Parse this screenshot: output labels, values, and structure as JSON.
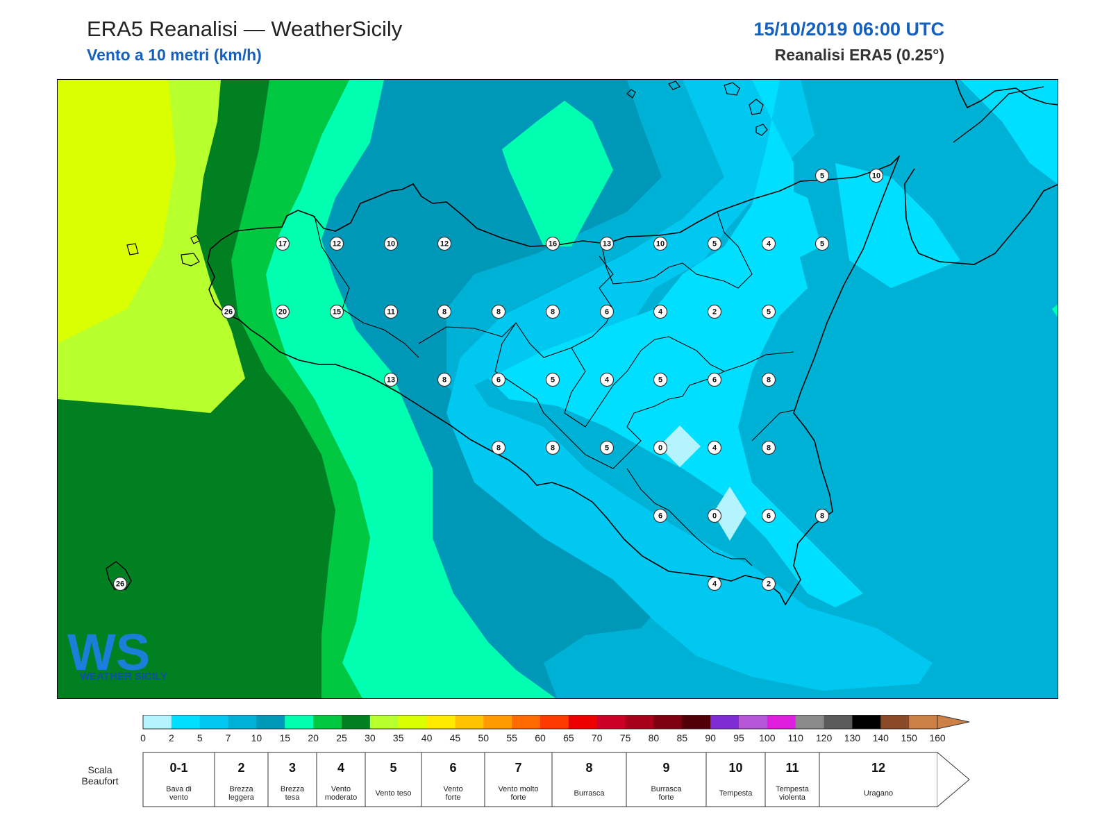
{
  "header": {
    "title": "ERA5 Reanalisi — WeatherSicily",
    "subtitle": "Vento a 10 metri (km/h)",
    "datetime": "15/10/2019 06:00 UTC",
    "source": "Reanalisi ERA5 (0.25°)"
  },
  "logo": {
    "letters": "WS",
    "text": "WEATHER SICILY"
  },
  "stations": [
    {
      "v": "17"
    },
    {
      "v": "12"
    },
    {
      "v": "10"
    },
    {
      "v": "12"
    },
    {
      "v": "16"
    },
    {
      "v": "13"
    },
    {
      "v": "10"
    },
    {
      "v": "5"
    },
    {
      "v": "4"
    },
    {
      "v": "5"
    },
    {
      "v": "5"
    },
    {
      "v": "10"
    },
    {
      "v": "26"
    },
    {
      "v": "20"
    },
    {
      "v": "15"
    },
    {
      "v": "11"
    },
    {
      "v": "8"
    },
    {
      "v": "8"
    },
    {
      "v": "8"
    },
    {
      "v": "6"
    },
    {
      "v": "4"
    },
    {
      "v": "2"
    },
    {
      "v": "5"
    },
    {
      "v": "13"
    },
    {
      "v": "8"
    },
    {
      "v": "6"
    },
    {
      "v": "5"
    },
    {
      "v": "4"
    },
    {
      "v": "5"
    },
    {
      "v": "6"
    },
    {
      "v": "8"
    },
    {
      "v": "8"
    },
    {
      "v": "8"
    },
    {
      "v": "5"
    },
    {
      "v": "0"
    },
    {
      "v": "4"
    },
    {
      "v": "8"
    },
    {
      "v": "6"
    },
    {
      "v": "0"
    },
    {
      "v": "6"
    },
    {
      "v": "8"
    },
    {
      "v": "4"
    },
    {
      "v": "2"
    },
    {
      "v": "26"
    }
  ],
  "colorbar": {
    "ticks": [
      "0",
      "2",
      "5",
      "7",
      "10",
      "15",
      "20",
      "25",
      "30",
      "35",
      "40",
      "45",
      "50",
      "55",
      "60",
      "65",
      "70",
      "75",
      "80",
      "85",
      "90",
      "95",
      "100",
      "110",
      "120",
      "130",
      "140",
      "150",
      "160"
    ],
    "colors": [
      "#b3f4ff",
      "#00dfff",
      "#00c8f0",
      "#00b1d6",
      "#0098b8",
      "#00ffb0",
      "#00c841",
      "#008021",
      "#b8ff2e",
      "#d9ff00",
      "#ffe900",
      "#ffc400",
      "#ff9b00",
      "#ff6a00",
      "#ff3a00",
      "#ed0000",
      "#cc0026",
      "#a8001a",
      "#7c000f",
      "#520008",
      "#7d2cd4",
      "#b557d6",
      "#e01ee0",
      "#8a8a8a",
      "#5a5a5a",
      "#000000",
      "#8a4a2a",
      "#cd8045"
    ]
  },
  "beaufort": {
    "title": "Scala Beaufort",
    "title_line1": "Scala",
    "title_line2": "Beaufort",
    "cells": [
      {
        "num": "0-1",
        "l1": "Bava di",
        "l2": "vento"
      },
      {
        "num": "2",
        "l1": "Brezza",
        "l2": "leggera"
      },
      {
        "num": "3",
        "l1": "Brezza",
        "l2": "tesa"
      },
      {
        "num": "4",
        "l1": "Vento",
        "l2": "moderato"
      },
      {
        "num": "5",
        "l1": "Vento teso",
        "l2": ""
      },
      {
        "num": "6",
        "l1": "Vento",
        "l2": "forte"
      },
      {
        "num": "7",
        "l1": "Vento molto",
        "l2": "forte"
      },
      {
        "num": "8",
        "l1": "Burrasca",
        "l2": ""
      },
      {
        "num": "9",
        "l1": "Burrasca",
        "l2": "forte"
      },
      {
        "num": "10",
        "l1": "Tempesta",
        "l2": ""
      },
      {
        "num": "11",
        "l1": "Tempesta",
        "l2": "violenta"
      },
      {
        "num": "12",
        "l1": "Uragano",
        "l2": ""
      }
    ]
  }
}
